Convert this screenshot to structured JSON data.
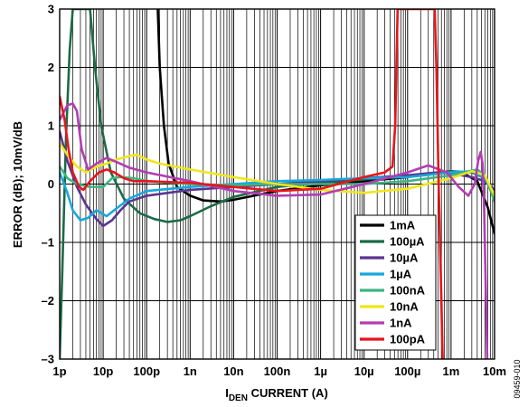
{
  "chart_data": {
    "type": "line",
    "xscale": "log",
    "xlim": [
      1e-12,
      0.01
    ],
    "ylim": [
      -3,
      3
    ],
    "grid": true,
    "legend_position": "bottom-right",
    "xlabel_main": "I",
    "xlabel_sub": "DEN",
    "xlabel_rest": " CURRENT (A)",
    "ylabel": "ERROR (dB); 10mV/dB",
    "x_ticks": [
      {
        "value": 1e-12,
        "label": "1p"
      },
      {
        "value": 1e-11,
        "label": "10p"
      },
      {
        "value": 1e-10,
        "label": "100p"
      },
      {
        "value": 1e-09,
        "label": "1n"
      },
      {
        "value": 1e-08,
        "label": "10n"
      },
      {
        "value": 1e-07,
        "label": "100n"
      },
      {
        "value": 1e-06,
        "label": "1µ"
      },
      {
        "value": 1e-05,
        "label": "10µ"
      },
      {
        "value": 0.0001,
        "label": "100µ"
      },
      {
        "value": 0.001,
        "label": "1m"
      },
      {
        "value": 0.01,
        "label": "10m"
      }
    ],
    "y_ticks": [
      {
        "value": 3,
        "label": "3"
      },
      {
        "value": 2,
        "label": "2"
      },
      {
        "value": 1,
        "label": "1"
      },
      {
        "value": 0,
        "label": "0"
      },
      {
        "value": -1,
        "label": "–1"
      },
      {
        "value": -2,
        "label": "–2"
      },
      {
        "value": -3,
        "label": "–3"
      }
    ],
    "series": [
      {
        "name": "1mA",
        "color": "#000000",
        "points": [
          [
            1.8e-10,
            3.0
          ],
          [
            2e-10,
            2.0
          ],
          [
            2.5e-10,
            1.0
          ],
          [
            3.2e-10,
            0.35
          ],
          [
            5e-10,
            -0.05
          ],
          [
            1e-09,
            -0.2
          ],
          [
            2e-09,
            -0.28
          ],
          [
            5e-09,
            -0.3
          ],
          [
            1e-08,
            -0.27
          ],
          [
            1e-07,
            -0.12
          ],
          [
            1e-06,
            -0.02
          ],
          [
            1e-05,
            0.05
          ],
          [
            0.0001,
            0.12
          ],
          [
            0.0003,
            0.18
          ],
          [
            0.001,
            0.22
          ],
          [
            0.002,
            0.18
          ],
          [
            0.004,
            0.05
          ],
          [
            0.007,
            -0.4
          ],
          [
            0.01,
            -0.85
          ]
        ]
      },
      {
        "name": "100µA",
        "color": "#1b6b46",
        "points": [
          [
            1e-12,
            -3.0
          ],
          [
            1.15e-12,
            -1.5
          ],
          [
            1.4e-12,
            0.8
          ],
          [
            1.7e-12,
            2.3
          ],
          [
            2e-12,
            3.0
          ],
          [
            5e-12,
            3.0
          ],
          [
            6.5e-12,
            2.0
          ],
          [
            9e-12,
            1.0
          ],
          [
            1.5e-11,
            0.2
          ],
          [
            3e-11,
            -0.25
          ],
          [
            7e-11,
            -0.5
          ],
          [
            1.5e-10,
            -0.6
          ],
          [
            3e-10,
            -0.65
          ],
          [
            6e-10,
            -0.62
          ],
          [
            1e-09,
            -0.55
          ],
          [
            3e-09,
            -0.38
          ],
          [
            1e-08,
            -0.22
          ],
          [
            1e-07,
            -0.05
          ],
          [
            1e-06,
            0.02
          ],
          [
            1e-05,
            0.08
          ],
          [
            0.0001,
            0.14
          ],
          [
            0.001,
            0.22
          ],
          [
            0.003,
            0.2
          ],
          [
            0.006,
            0.1
          ],
          [
            0.01,
            -0.2
          ]
        ]
      },
      {
        "name": "10µA",
        "color": "#5a3590",
        "points": [
          [
            1e-12,
            0.9
          ],
          [
            1.5e-12,
            0.4
          ],
          [
            2.5e-12,
            -0.05
          ],
          [
            4e-12,
            -0.35
          ],
          [
            7e-12,
            -0.6
          ],
          [
            1e-11,
            -0.72
          ],
          [
            1.6e-11,
            -0.62
          ],
          [
            2.5e-11,
            -0.45
          ],
          [
            4e-11,
            -0.3
          ],
          [
            1e-10,
            -0.2
          ],
          [
            1e-09,
            -0.1
          ],
          [
            1e-08,
            -0.05
          ],
          [
            1e-07,
            0.0
          ],
          [
            1e-06,
            0.05
          ],
          [
            1e-05,
            0.1
          ],
          [
            0.0001,
            0.15
          ],
          [
            0.0005,
            0.2
          ],
          [
            0.001,
            0.18
          ],
          [
            0.003,
            0.12
          ],
          [
            0.006,
            0.05
          ],
          [
            0.01,
            -0.1
          ]
        ]
      },
      {
        "name": "1µA",
        "color": "#16a8dc",
        "points": [
          [
            1e-12,
            0.2
          ],
          [
            1.5e-12,
            -0.15
          ],
          [
            2e-12,
            -0.45
          ],
          [
            3e-12,
            -0.62
          ],
          [
            4.5e-12,
            -0.58
          ],
          [
            7e-12,
            -0.45
          ],
          [
            1.2e-11,
            -0.55
          ],
          [
            2e-11,
            -0.42
          ],
          [
            4e-11,
            -0.25
          ],
          [
            1e-10,
            -0.12
          ],
          [
            1e-09,
            -0.05
          ],
          [
            1e-08,
            0.0
          ],
          [
            1e-07,
            0.05
          ],
          [
            1e-06,
            0.07
          ],
          [
            1e-05,
            0.1
          ],
          [
            0.0001,
            0.12
          ],
          [
            0.001,
            0.2
          ],
          [
            0.003,
            0.22
          ],
          [
            0.006,
            0.1
          ],
          [
            0.01,
            -0.25
          ]
        ]
      },
      {
        "name": "100nA",
        "color": "#3db582",
        "points": [
          [
            1e-12,
            0.3
          ],
          [
            1.5e-12,
            0.1
          ],
          [
            2.5e-12,
            0.0
          ],
          [
            5e-12,
            -0.05
          ],
          [
            1e-11,
            -0.05
          ],
          [
            1.6e-11,
            0.1
          ],
          [
            2.5e-11,
            0.12
          ],
          [
            5e-11,
            0.1
          ],
          [
            1e-10,
            0.05
          ],
          [
            1e-09,
            0.0
          ],
          [
            1e-08,
            -0.02
          ],
          [
            1e-07,
            0.0
          ],
          [
            1e-06,
            0.0
          ],
          [
            1e-05,
            0.0
          ],
          [
            0.0001,
            0.05
          ],
          [
            0.001,
            0.15
          ],
          [
            0.004,
            0.25
          ],
          [
            0.006,
            0.15
          ],
          [
            0.01,
            -0.3
          ]
        ]
      },
      {
        "name": "10nA",
        "color": "#f0e61c",
        "points": [
          [
            1e-12,
            0.7
          ],
          [
            1.5e-12,
            0.5
          ],
          [
            2.5e-12,
            0.3
          ],
          [
            4e-12,
            0.2
          ],
          [
            7e-12,
            0.3
          ],
          [
            1.2e-11,
            0.35
          ],
          [
            2e-11,
            0.42
          ],
          [
            4e-11,
            0.48
          ],
          [
            6e-11,
            0.5
          ],
          [
            1e-10,
            0.42
          ],
          [
            2e-10,
            0.35
          ],
          [
            1e-09,
            0.25
          ],
          [
            1e-08,
            0.12
          ],
          [
            1e-07,
            0.0
          ],
          [
            1e-06,
            -0.1
          ],
          [
            1e-05,
            -0.15
          ],
          [
            0.0001,
            -0.08
          ],
          [
            0.001,
            0.1
          ],
          [
            0.003,
            0.22
          ],
          [
            0.006,
            0.15
          ],
          [
            0.01,
            -0.2
          ]
        ]
      },
      {
        "name": "1nA",
        "color": "#b43cb4",
        "points": [
          [
            1e-12,
            1.1
          ],
          [
            1.5e-12,
            1.35
          ],
          [
            2e-12,
            1.38
          ],
          [
            2.5e-12,
            1.25
          ],
          [
            3.2e-12,
            0.6
          ],
          [
            4.5e-12,
            0.25
          ],
          [
            7e-12,
            0.35
          ],
          [
            1.2e-11,
            0.45
          ],
          [
            2e-11,
            0.38
          ],
          [
            4e-11,
            0.28
          ],
          [
            1e-10,
            0.2
          ],
          [
            1e-09,
            0.05
          ],
          [
            1e-08,
            -0.12
          ],
          [
            1e-07,
            -0.2
          ],
          [
            1e-06,
            -0.18
          ],
          [
            1e-05,
            0.0
          ],
          [
            0.0001,
            0.2
          ],
          [
            0.0003,
            0.32
          ],
          [
            0.0008,
            0.2
          ],
          [
            0.0015,
            -0.05
          ],
          [
            0.0025,
            -0.2
          ],
          [
            0.0035,
            0.0
          ],
          [
            0.0042,
            0.4
          ],
          [
            0.0048,
            0.55
          ],
          [
            0.0053,
            0.35
          ],
          [
            0.0058,
            -0.5
          ],
          [
            0.0063,
            -1.8
          ],
          [
            0.0068,
            -3.0
          ]
        ]
      },
      {
        "name": "100pA",
        "color": "#e8151b",
        "points": [
          [
            1e-12,
            1.5
          ],
          [
            1.3e-12,
            1.1
          ],
          [
            1.6e-12,
            0.6
          ],
          [
            2e-12,
            0.2
          ],
          [
            2.8e-12,
            -0.05
          ],
          [
            3.5e-12,
            -0.1
          ],
          [
            5e-12,
            0.05
          ],
          [
            8e-12,
            0.2
          ],
          [
            1.2e-11,
            0.25
          ],
          [
            1.8e-11,
            0.2
          ],
          [
            3e-11,
            0.1
          ],
          [
            5e-11,
            0.05
          ],
          [
            1e-10,
            0.05
          ],
          [
            1e-09,
            0.02
          ],
          [
            1e-08,
            -0.05
          ],
          [
            1e-07,
            -0.12
          ],
          [
            1e-06,
            -0.08
          ],
          [
            1e-05,
            0.12
          ],
          [
            3e-05,
            0.2
          ],
          [
            4.5e-05,
            0.3
          ],
          [
            5.2e-05,
            1.0
          ],
          [
            5.6e-05,
            2.2
          ],
          [
            5.9e-05,
            3.0
          ],
          [
            0.00042,
            3.0
          ],
          [
            0.00046,
            2.0
          ],
          [
            0.00052,
            0.0
          ],
          [
            0.0006,
            -2.0
          ],
          [
            0.00064,
            -3.0
          ]
        ]
      }
    ]
  },
  "figure_id": "09459-010"
}
